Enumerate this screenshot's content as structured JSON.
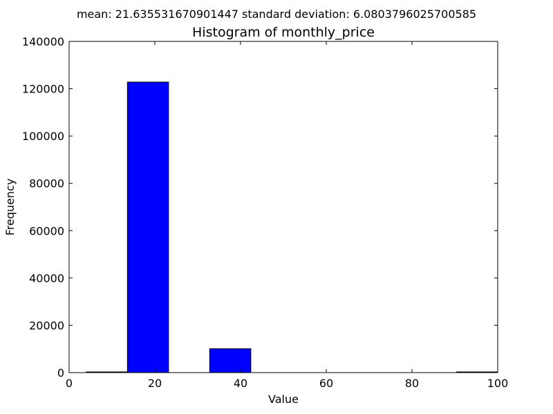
{
  "chart_data": {
    "type": "bar",
    "suptitle": "mean: 21.635531670901447 standard deviation: 6.0803796025700585",
    "title": "Histogram of monthly_price",
    "xlabel": "Value",
    "ylabel": "Frequency",
    "xlim": [
      0,
      100
    ],
    "ylim": [
      0,
      140000
    ],
    "xticks": [
      0,
      20,
      40,
      60,
      80,
      100
    ],
    "yticks": [
      0,
      20000,
      40000,
      60000,
      80000,
      100000,
      120000,
      140000
    ],
    "bins": [
      {
        "x0": 4.0,
        "x1": 13.6,
        "value": 150
      },
      {
        "x0": 13.6,
        "x1": 23.2,
        "value": 122800
      },
      {
        "x0": 23.2,
        "x1": 32.8,
        "value": 0
      },
      {
        "x0": 32.8,
        "x1": 42.4,
        "value": 10100
      },
      {
        "x0": 42.4,
        "x1": 52.0,
        "value": 0
      },
      {
        "x0": 52.0,
        "x1": 61.6,
        "value": 0
      },
      {
        "x0": 61.6,
        "x1": 71.2,
        "value": 0
      },
      {
        "x0": 71.2,
        "x1": 80.8,
        "value": 0
      },
      {
        "x0": 80.8,
        "x1": 90.4,
        "value": 0
      },
      {
        "x0": 90.4,
        "x1": 100.0,
        "value": 150
      }
    ],
    "bar_color": "#0000ff",
    "edge_color": "#000000",
    "grid": false,
    "legend": "none"
  }
}
